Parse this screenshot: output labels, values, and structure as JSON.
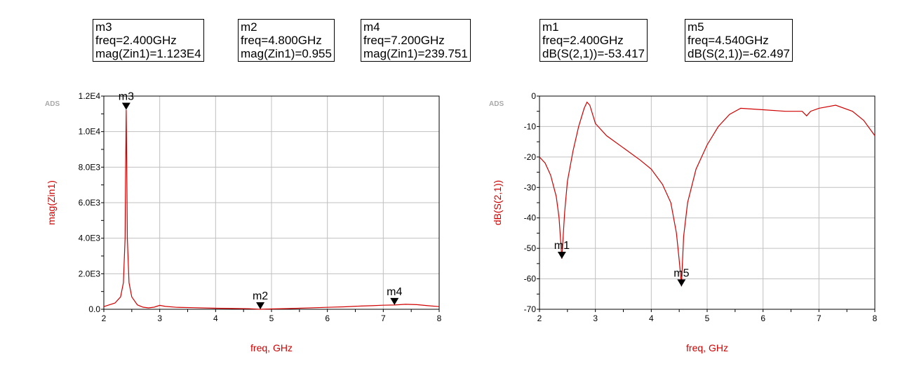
{
  "markers": [
    {
      "name": "m3",
      "line1": "freq=2.400GHz",
      "line2": "mag(Zin1)=1.123E4"
    },
    {
      "name": "m2",
      "line1": "freq=4.800GHz",
      "line2": "mag(Zin1)=0.955"
    },
    {
      "name": "m4",
      "line1": "freq=7.200GHz",
      "line2": "mag(Zin1)=239.751"
    },
    {
      "name": "m1",
      "line1": "freq=2.400GHz",
      "line2": "dB(S(2,1))=-53.417"
    },
    {
      "name": "m5",
      "line1": "freq=4.540GHz",
      "line2": "dB(S(2,1))=-62.497"
    }
  ],
  "colors": {
    "trace": "#d00000",
    "grid": "#c0c0c0",
    "axis": "#000000",
    "watermark": "#a8a8a8"
  },
  "chart_data": [
    {
      "type": "line",
      "watermark": "ADS",
      "xlabel": "freq, GHz",
      "ylabel": "mag(Zin1)",
      "xlim": [
        2,
        8
      ],
      "ylim": [
        0,
        12000
      ],
      "xticks": [
        "2",
        "3",
        "4",
        "5",
        "6",
        "7",
        "8"
      ],
      "yticks": [
        "0.0",
        "2.0E3",
        "4.0E3",
        "6.0E3",
        "8.0E3",
        "1.0E4",
        "1.2E4"
      ],
      "series": [
        {
          "x": [
            2.0,
            2.2,
            2.3,
            2.35,
            2.38,
            2.39,
            2.4,
            2.41,
            2.42,
            2.45,
            2.5,
            2.6,
            2.7,
            2.8,
            2.9,
            3.0,
            3.1,
            3.3,
            3.6,
            4.0,
            4.3,
            4.6,
            4.8,
            5.0,
            5.3,
            5.6,
            6.0,
            6.3,
            6.6,
            6.8,
            7.0,
            7.2,
            7.4,
            7.6,
            7.8,
            8.0
          ],
          "y": [
            150,
            350,
            700,
            1500,
            4000,
            8000,
            11230,
            8000,
            4000,
            1500,
            700,
            250,
            120,
            80,
            120,
            220,
            160,
            110,
            90,
            60,
            45,
            30,
            1,
            20,
            40,
            70,
            110,
            140,
            180,
            200,
            230,
            240,
            280,
            260,
            200,
            150
          ]
        }
      ],
      "markers": [
        {
          "name": "m3",
          "x": 2.4,
          "y": 11230
        },
        {
          "name": "m2",
          "x": 4.8,
          "y": 0.955
        },
        {
          "name": "m4",
          "x": 7.2,
          "y": 239.751
        }
      ]
    },
    {
      "type": "line",
      "watermark": "ADS",
      "xlabel": "freq, GHz",
      "ylabel": "dB(S(2,1))",
      "xlim": [
        2,
        8
      ],
      "ylim": [
        -70,
        0
      ],
      "xticks": [
        "2",
        "3",
        "4",
        "5",
        "6",
        "7",
        "8"
      ],
      "yticks": [
        "-70",
        "-60",
        "-50",
        "-40",
        "-30",
        "-20",
        "-10",
        "0"
      ],
      "series": [
        {
          "x": [
            2.0,
            2.1,
            2.2,
            2.3,
            2.35,
            2.38,
            2.4,
            2.42,
            2.45,
            2.5,
            2.6,
            2.7,
            2.8,
            2.85,
            2.9,
            3.0,
            3.2,
            3.5,
            3.8,
            4.0,
            4.2,
            4.35,
            4.45,
            4.5,
            4.53,
            4.54,
            4.55,
            4.58,
            4.65,
            4.8,
            5.0,
            5.2,
            5.4,
            5.6,
            6.0,
            6.4,
            6.7,
            6.78,
            6.85,
            7.0,
            7.3,
            7.6,
            7.8,
            8.0
          ],
          "y": [
            -20,
            -22,
            -26,
            -33,
            -40,
            -48,
            -53.4,
            -47,
            -38,
            -28,
            -18,
            -10,
            -4,
            -2,
            -3,
            -9,
            -13,
            -17,
            -21,
            -24,
            -29,
            -35,
            -45,
            -54,
            -60,
            -62.5,
            -58,
            -46,
            -35,
            -24,
            -16,
            -10,
            -6,
            -4,
            -4.5,
            -5,
            -5,
            -6.5,
            -5,
            -4,
            -3,
            -5,
            -8,
            -13
          ]
        }
      ],
      "markers": [
        {
          "name": "m1",
          "x": 2.4,
          "y": -53.417
        },
        {
          "name": "m5",
          "x": 4.54,
          "y": -62.497
        }
      ]
    }
  ]
}
